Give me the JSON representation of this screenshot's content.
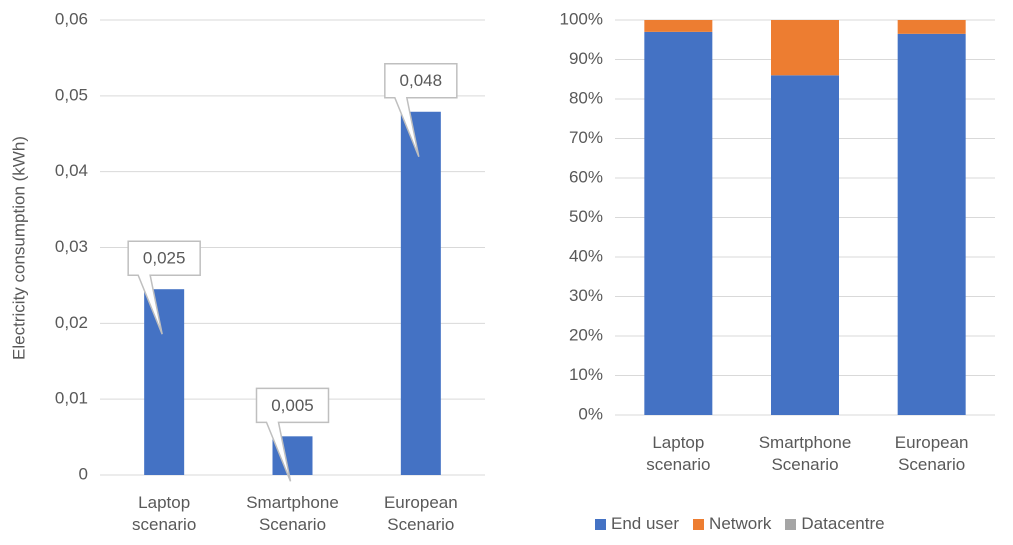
{
  "chart_data": [
    {
      "type": "bar",
      "ylabel": "Electricity consumption (kWh)",
      "categories": [
        "Laptop scenario",
        "Smartphone Scenario",
        "European Scenario"
      ],
      "values": [
        0.0245,
        0.0051,
        0.0479
      ],
      "value_labels": [
        "0,025",
        "0,005",
        "0,048"
      ],
      "color": "#4472c4",
      "ylim": [
        0,
        0.06
      ],
      "yticks": [
        0,
        {
          "value": 0.01,
          "label": "0,01"
        },
        {
          "value": 0.02,
          "label": "0,02"
        },
        {
          "value": 0.03,
          "label": "0,03"
        },
        {
          "value": 0.04,
          "label": "0,04"
        },
        {
          "value": 0.05,
          "label": "0,05"
        },
        {
          "value": 0.06,
          "label": "0,06"
        }
      ],
      "grid": true
    },
    {
      "type": "stacked_bar",
      "categories": [
        "Laptop scenario",
        "Smartphone Scenario",
        "European Scenario"
      ],
      "series": [
        {
          "name": "End user",
          "color": "#4472c4",
          "values": [
            97,
            86,
            96.5
          ]
        },
        {
          "name": "Network",
          "color": "#ed7d31",
          "values": [
            3,
            14,
            3.5
          ]
        },
        {
          "name": "Datacentre",
          "color": "#a5a5a5",
          "values": [
            0,
            0,
            0
          ]
        }
      ],
      "ylim": [
        0,
        100
      ],
      "yticks": [
        {
          "value": 0,
          "label": "0%"
        },
        {
          "value": 10,
          "label": "10%"
        },
        {
          "value": 20,
          "label": "20%"
        },
        {
          "value": 30,
          "label": "30%"
        },
        {
          "value": 40,
          "label": "40%"
        },
        {
          "value": 50,
          "label": "50%"
        },
        {
          "value": 60,
          "label": "60%"
        },
        {
          "value": 70,
          "label": "70%"
        },
        {
          "value": 80,
          "label": "80%"
        },
        {
          "value": 90,
          "label": "90%"
        },
        {
          "value": 100,
          "label": "100%"
        }
      ],
      "grid": true,
      "legend": "bottom"
    }
  ]
}
